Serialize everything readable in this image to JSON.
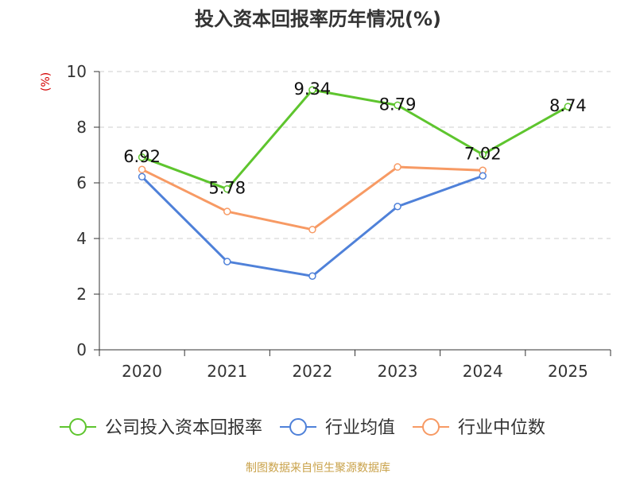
{
  "chart_data": {
    "type": "line",
    "title": "投入资本回报率历年情况(%)",
    "ylabel": "(%)",
    "ylim": [
      0,
      10
    ],
    "yticks": [
      0,
      2,
      4,
      6,
      8,
      10
    ],
    "categories": [
      "2020",
      "2021",
      "2022",
      "2023",
      "2024",
      "2025"
    ],
    "grid": true,
    "legend_position": "bottom",
    "series": [
      {
        "name": "公司投入资本回报率",
        "color": "#5ec52e",
        "values": [
          6.92,
          5.78,
          9.34,
          8.79,
          7.02,
          8.74
        ],
        "labels": [
          "6.92",
          "5.78",
          "9.34",
          "8.79",
          "7.02",
          "8.74"
        ]
      },
      {
        "name": "行业均值",
        "color": "#4f81d9",
        "values": [
          6.22,
          3.17,
          2.65,
          5.15,
          6.25,
          null
        ]
      },
      {
        "name": "行业中位数",
        "color": "#f79a64",
        "values": [
          6.48,
          4.97,
          4.32,
          6.57,
          6.45,
          null
        ]
      }
    ]
  },
  "footer": {
    "source": "制图数据来自恒生聚源数据库"
  }
}
